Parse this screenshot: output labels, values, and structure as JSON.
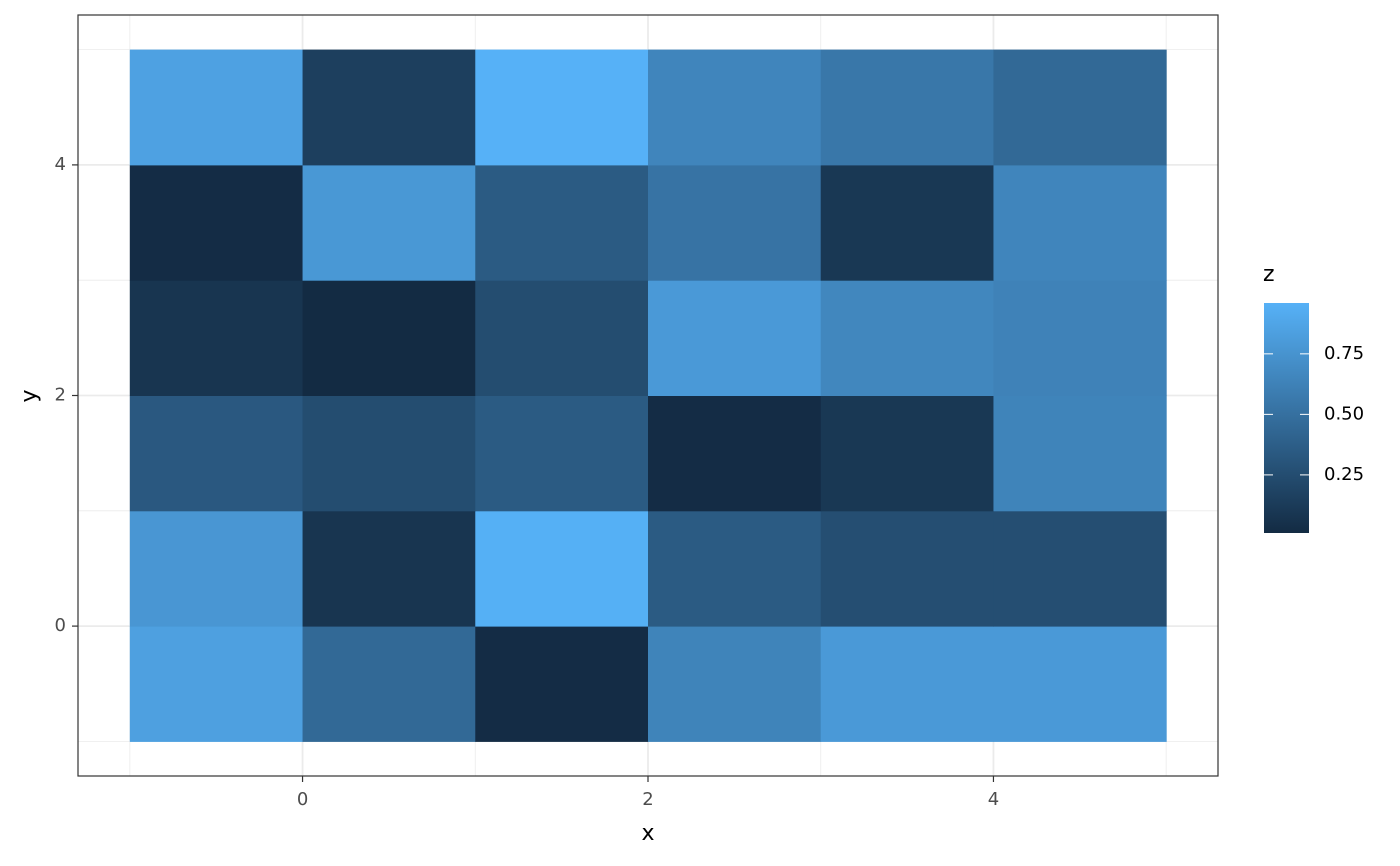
{
  "chart_data": {
    "type": "heatmap",
    "x_label": "x",
    "y_label": "y",
    "legend_title": "z",
    "x": [
      -0.5,
      0.5,
      1.5,
      2.5,
      3.5,
      4.5
    ],
    "y": [
      -0.5,
      0.5,
      1.5,
      2.5,
      3.5,
      4.5
    ],
    "z": [
      [
        0.84,
        0.45,
        0.02,
        0.64,
        0.79,
        0.79
      ],
      [
        0.77,
        0.08,
        0.95,
        0.35,
        0.26,
        0.26
      ],
      [
        0.33,
        0.25,
        0.35,
        0.02,
        0.1,
        0.64
      ],
      [
        0.08,
        0.01,
        0.25,
        0.79,
        0.66,
        0.63
      ],
      [
        0.02,
        0.78,
        0.35,
        0.52,
        0.1,
        0.65
      ],
      [
        0.85,
        0.15,
        0.96,
        0.65,
        0.55,
        0.45
      ]
    ],
    "colors": [
      "#132B43",
      "#56B1F7"
    ],
    "xlim": [
      -1.3,
      5.3
    ],
    "ylim": [
      -1.3,
      5.3
    ],
    "xticks": [
      0,
      2,
      4
    ],
    "yticks": [
      0,
      2,
      4
    ],
    "xminor": [
      -1,
      1,
      3,
      5
    ],
    "yminor": [
      -1,
      1,
      3,
      5
    ],
    "colorbar_ticks": [
      0.25,
      {
        "value": 0.5,
        "label": "0.50"
      },
      0.75
    ],
    "grid": true
  }
}
